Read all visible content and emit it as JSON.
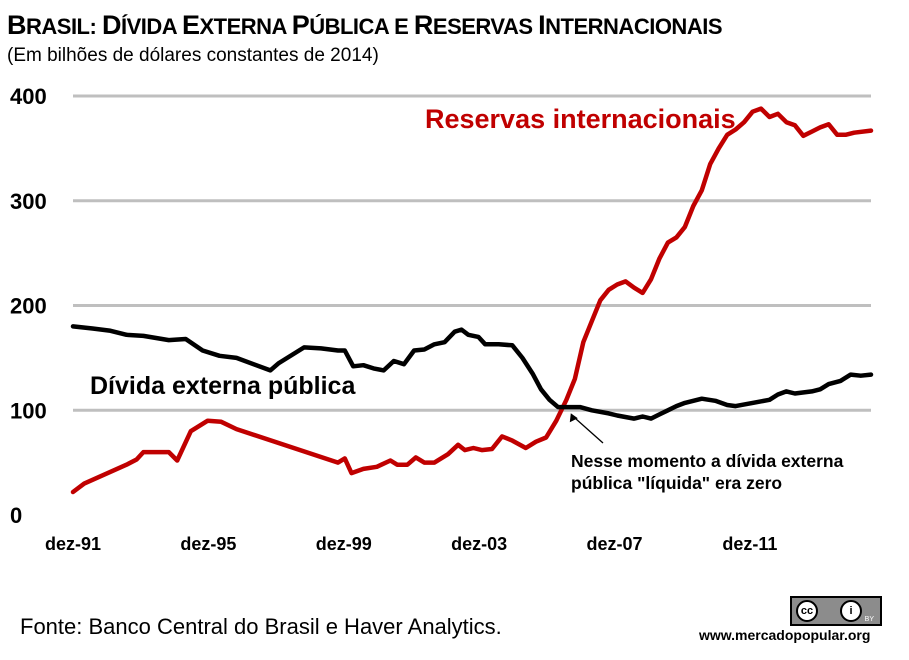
{
  "title": {
    "parts": [
      {
        "big": "B",
        "rest": "RASIL: "
      },
      {
        "big": "D",
        "rest": "ÍVIDA "
      },
      {
        "big": "E",
        "rest": "XTERNA "
      },
      {
        "big": "P",
        "rest": "ÚBLICA E "
      },
      {
        "big": "R",
        "rest": "ESERVAS "
      },
      {
        "big": "I",
        "rest": "NTERNACIONAIS"
      }
    ]
  },
  "subtitle": "(Em bilhões de dólares constantes de 2014)",
  "source": "Fonte: Banco Central do Brasil e Haver Analytics.",
  "website": "www.mercadopopular.org",
  "license_badge": {
    "cc": "cc",
    "by": "i",
    "by_text": "BY"
  },
  "colors": {
    "reservas": "#c00000",
    "divida": "#000000",
    "grid": "#bfbfbf"
  },
  "chart_data": {
    "type": "line",
    "xlim": [
      1991.92,
      2015.5
    ],
    "ylim": [
      0,
      400
    ],
    "y_ticks": [
      0,
      100,
      200,
      300,
      400
    ],
    "x_ticks": [
      {
        "label": "dez-91",
        "value": 1991.92
      },
      {
        "label": "dez-95",
        "value": 1995.92
      },
      {
        "label": "dez-99",
        "value": 1999.92
      },
      {
        "label": "dez-03",
        "value": 2003.92
      },
      {
        "label": "dez-07",
        "value": 2007.92
      },
      {
        "label": "dez-11",
        "value": 2011.92
      }
    ],
    "grid": true,
    "series": [
      {
        "name": "Reservas internacionais",
        "color": "#c00000",
        "points": [
          [
            1991.92,
            22
          ],
          [
            1992.25,
            30
          ],
          [
            1993.5,
            48
          ],
          [
            1993.8,
            53
          ],
          [
            1994.0,
            60
          ],
          [
            1994.75,
            60
          ],
          [
            1995.0,
            52
          ],
          [
            1995.4,
            80
          ],
          [
            1995.9,
            90
          ],
          [
            1996.3,
            89
          ],
          [
            1996.75,
            82
          ],
          [
            1999.75,
            50
          ],
          [
            1999.95,
            54
          ],
          [
            2000.15,
            40
          ],
          [
            2000.5,
            44
          ],
          [
            2000.9,
            46
          ],
          [
            2001.3,
            52
          ],
          [
            2001.5,
            48
          ],
          [
            2001.8,
            48
          ],
          [
            2002.05,
            55
          ],
          [
            2002.3,
            50
          ],
          [
            2002.6,
            50
          ],
          [
            2003.0,
            58
          ],
          [
            2003.3,
            67
          ],
          [
            2003.5,
            62
          ],
          [
            2003.75,
            64
          ],
          [
            2004.0,
            62
          ],
          [
            2004.3,
            63
          ],
          [
            2004.6,
            75
          ],
          [
            2004.9,
            71
          ],
          [
            2005.3,
            64
          ],
          [
            2005.6,
            70
          ],
          [
            2005.9,
            74
          ],
          [
            2006.2,
            90
          ],
          [
            2006.5,
            110
          ],
          [
            2006.75,
            130
          ],
          [
            2007.0,
            165
          ],
          [
            2007.25,
            185
          ],
          [
            2007.5,
            205
          ],
          [
            2007.75,
            215
          ],
          [
            2008.0,
            220
          ],
          [
            2008.25,
            223
          ],
          [
            2008.5,
            217
          ],
          [
            2008.75,
            212
          ],
          [
            2009.0,
            225
          ],
          [
            2009.25,
            245
          ],
          [
            2009.5,
            260
          ],
          [
            2009.75,
            265
          ],
          [
            2010.0,
            275
          ],
          [
            2010.25,
            295
          ],
          [
            2010.5,
            310
          ],
          [
            2010.75,
            335
          ],
          [
            2011.0,
            350
          ],
          [
            2011.25,
            363
          ],
          [
            2011.5,
            368
          ],
          [
            2011.75,
            375
          ],
          [
            2012.0,
            385
          ],
          [
            2012.25,
            388
          ],
          [
            2012.5,
            380
          ],
          [
            2012.75,
            383
          ],
          [
            2013.0,
            375
          ],
          [
            2013.25,
            372
          ],
          [
            2013.5,
            362
          ],
          [
            2013.75,
            366
          ],
          [
            2014.0,
            370
          ],
          [
            2014.25,
            373
          ],
          [
            2014.5,
            363
          ],
          [
            2014.75,
            363
          ],
          [
            2015.0,
            365
          ],
          [
            2015.5,
            367
          ]
        ]
      },
      {
        "name": "Dívida externa pública",
        "color": "#000000",
        "points": [
          [
            1991.92,
            180
          ],
          [
            1992.5,
            178
          ],
          [
            1993.0,
            176
          ],
          [
            1993.5,
            172
          ],
          [
            1994.0,
            171
          ],
          [
            1994.75,
            167
          ],
          [
            1995.25,
            168
          ],
          [
            1995.75,
            157
          ],
          [
            1996.25,
            152
          ],
          [
            1996.75,
            150
          ],
          [
            1997.75,
            138
          ],
          [
            1998.0,
            145
          ],
          [
            1998.75,
            160
          ],
          [
            1999.25,
            159
          ],
          [
            1999.75,
            157
          ],
          [
            1999.95,
            157
          ],
          [
            2000.2,
            142
          ],
          [
            2000.5,
            143
          ],
          [
            2000.8,
            140
          ],
          [
            2001.1,
            138
          ],
          [
            2001.4,
            147
          ],
          [
            2001.7,
            144
          ],
          [
            2002.0,
            157
          ],
          [
            2002.3,
            158
          ],
          [
            2002.6,
            163
          ],
          [
            2002.9,
            165
          ],
          [
            2003.2,
            175
          ],
          [
            2003.4,
            177
          ],
          [
            2003.6,
            172
          ],
          [
            2003.9,
            170
          ],
          [
            2004.1,
            163
          ],
          [
            2004.5,
            163
          ],
          [
            2004.9,
            162
          ],
          [
            2005.2,
            150
          ],
          [
            2005.5,
            135
          ],
          [
            2005.75,
            120
          ],
          [
            2006.0,
            110
          ],
          [
            2006.25,
            103
          ],
          [
            2006.5,
            103
          ],
          [
            2006.9,
            103
          ],
          [
            2007.25,
            100
          ],
          [
            2007.75,
            97
          ],
          [
            2008.0,
            95
          ],
          [
            2008.5,
            92
          ],
          [
            2008.75,
            94
          ],
          [
            2009.0,
            92
          ],
          [
            2009.25,
            96
          ],
          [
            2009.5,
            100
          ],
          [
            2009.75,
            104
          ],
          [
            2010.0,
            107
          ],
          [
            2010.5,
            111
          ],
          [
            2010.9,
            109
          ],
          [
            2011.25,
            105
          ],
          [
            2011.5,
            104
          ],
          [
            2012.0,
            107
          ],
          [
            2012.5,
            110
          ],
          [
            2012.75,
            115
          ],
          [
            2013.0,
            118
          ],
          [
            2013.25,
            116
          ],
          [
            2013.75,
            118
          ],
          [
            2014.0,
            120
          ],
          [
            2014.25,
            125
          ],
          [
            2014.6,
            128
          ],
          [
            2014.9,
            134
          ],
          [
            2015.2,
            133
          ],
          [
            2015.5,
            134
          ]
        ]
      }
    ],
    "annotation": {
      "lines": [
        "Nesse momento a dívida externa",
        "pública \"líquida\" era zero"
      ],
      "target": [
        2006.6,
        101
      ]
    }
  }
}
